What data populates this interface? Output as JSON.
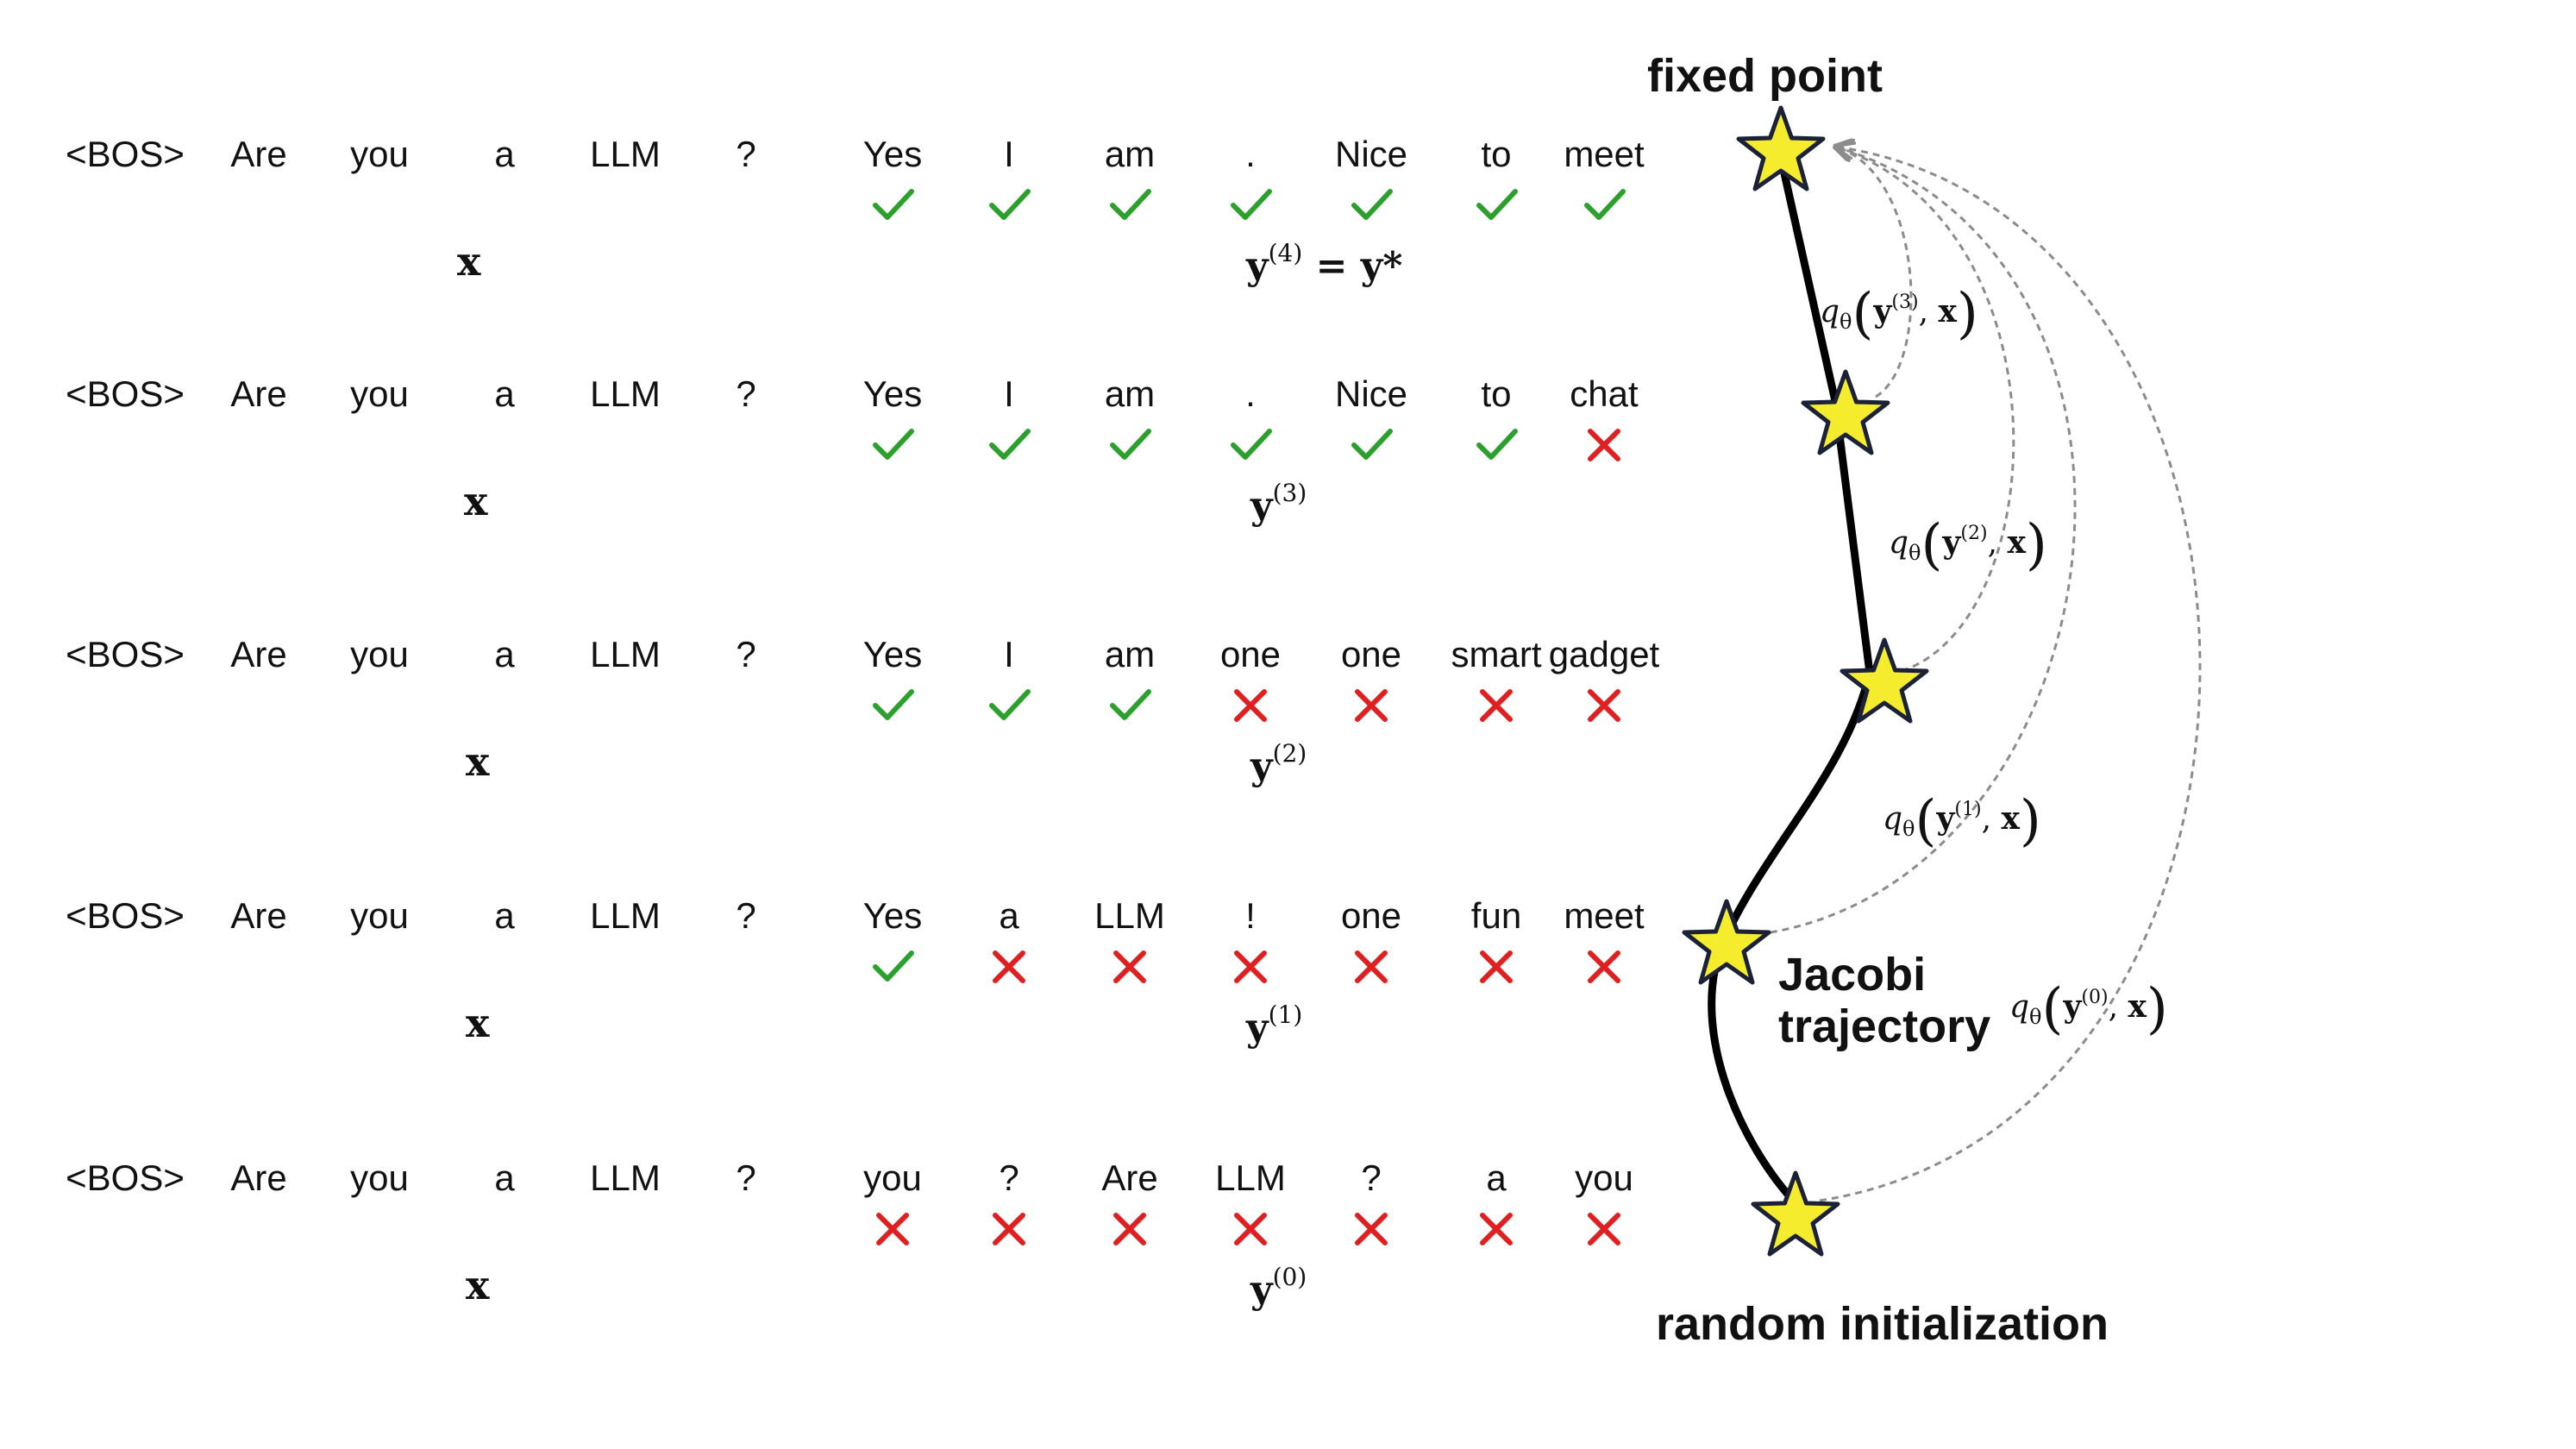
{
  "prompt_tokens": [
    "<BOS>",
    "Are",
    "you",
    "a",
    "LLM",
    "?"
  ],
  "x_symbol": "x",
  "y_symbol": "y",
  "rows": [
    {
      "id": "row-y4",
      "output_tokens": [
        "Yes",
        "I",
        "am",
        ".",
        "Nice",
        "to",
        "meet"
      ],
      "status": [
        "correct",
        "correct",
        "correct",
        "correct",
        "correct",
        "correct",
        "correct"
      ],
      "superscript": "(4)",
      "equation_suffix": " = y*"
    },
    {
      "id": "row-y3",
      "output_tokens": [
        "Yes",
        "I",
        "am",
        ".",
        "Nice",
        "to",
        "chat"
      ],
      "status": [
        "correct",
        "correct",
        "correct",
        "correct",
        "correct",
        "correct",
        "wrong"
      ],
      "superscript": "(3)",
      "equation_suffix": ""
    },
    {
      "id": "row-y2",
      "output_tokens": [
        "Yes",
        "I",
        "am",
        "one",
        "one",
        "smart",
        "gadget"
      ],
      "status": [
        "correct",
        "correct",
        "correct",
        "wrong",
        "wrong",
        "wrong",
        "wrong"
      ],
      "superscript": "(2)",
      "equation_suffix": ""
    },
    {
      "id": "row-y1",
      "output_tokens": [
        "Yes",
        "a",
        "LLM",
        "!",
        "one",
        "fun",
        "meet"
      ],
      "status": [
        "correct",
        "wrong",
        "wrong",
        "wrong",
        "wrong",
        "wrong",
        "wrong"
      ],
      "superscript": "(1)",
      "equation_suffix": ""
    },
    {
      "id": "row-y0",
      "output_tokens": [
        "you",
        "?",
        "Are",
        "LLM",
        "?",
        "a",
        "you"
      ],
      "status": [
        "wrong",
        "wrong",
        "wrong",
        "wrong",
        "wrong",
        "wrong",
        "wrong"
      ],
      "superscript": "(0)",
      "equation_suffix": ""
    }
  ],
  "labels": {
    "fixed_point": "fixed point",
    "jacobi_trajectory_line1": "Jacobi",
    "jacobi_trajectory_line2": "trajectory",
    "random_initialization": "random initialization"
  },
  "consistency_labels": [
    {
      "q": "q",
      "theta": "θ",
      "superscript": "(3)"
    },
    {
      "q": "q",
      "theta": "θ",
      "superscript": "(2)"
    },
    {
      "q": "q",
      "theta": "θ",
      "superscript": "(1)"
    },
    {
      "q": "q",
      "theta": "θ",
      "superscript": "(0)"
    }
  ],
  "colors": {
    "correct": "#2ca02c",
    "wrong": "#e02020",
    "star_fill": "#f5ec2e",
    "star_stroke": "#1b2238",
    "trajectory": "#000000",
    "arrows": "#8c8c8c"
  }
}
